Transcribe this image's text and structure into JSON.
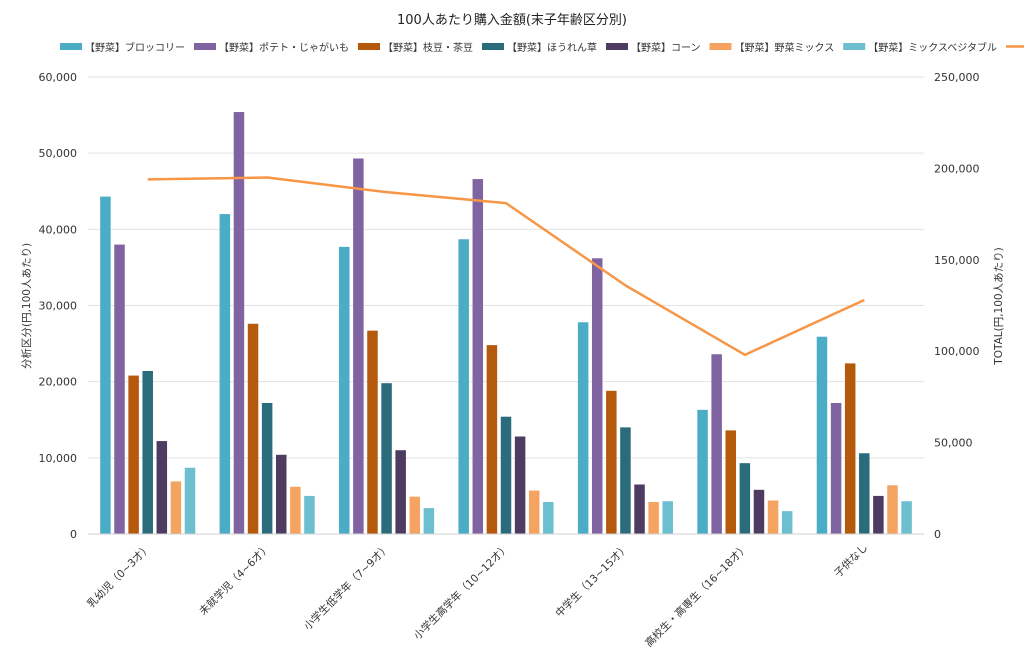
{
  "chart_data": {
    "type": "bar",
    "title": "100人あたり購入金額(末子年齢区分別)",
    "ylabel": "分析区分(円,100人あたり)",
    "y2label": "TOTAL(円,100人あたり)",
    "ylim": [
      0,
      60000
    ],
    "y2lim": [
      0,
      250000
    ],
    "yticks": [
      "0",
      "10,000",
      "20,000",
      "30,000",
      "40,000",
      "50,000",
      "60,000"
    ],
    "y2ticks": [
      "0",
      "50,000",
      "100,000",
      "150,000",
      "200,000",
      "250,000"
    ],
    "legend_position": "top",
    "grid": true,
    "categories": [
      "乳幼児（0~3才）",
      "未就学児（4~6才）",
      "小学生低学年（7~9才）",
      "小学生高学年（10~12才）",
      "中学生（13~15才）",
      "高校生・高専生（16~18才）",
      "子供なし"
    ],
    "series": [
      {
        "name": "【野菜】ブロッコリー",
        "color": "#4bacc6",
        "values": [
          44300,
          42000,
          37700,
          38700,
          27800,
          16300,
          25900
        ]
      },
      {
        "name": "【野菜】ポテト・じゃがいも",
        "color": "#8064a2",
        "values": [
          38000,
          55400,
          49300,
          46600,
          36200,
          23600,
          17200
        ]
      },
      {
        "name": "【野菜】枝豆・茶豆",
        "color": "#b55a0c",
        "values": [
          20800,
          27600,
          26700,
          24800,
          18800,
          13600,
          22400
        ]
      },
      {
        "name": "【野菜】ほうれん草",
        "color": "#2a6b7c",
        "values": [
          21400,
          17200,
          19800,
          15400,
          14000,
          9300,
          10600
        ]
      },
      {
        "name": "【野菜】コーン",
        "color": "#4e3b62",
        "values": [
          12200,
          10400,
          11000,
          12800,
          6500,
          5800,
          5000
        ]
      },
      {
        "name": "【野菜】野菜ミックス",
        "color": "#f4a460",
        "values": [
          6900,
          6200,
          4900,
          5700,
          4200,
          4400,
          6400
        ]
      },
      {
        "name": "【野菜】ミックスベジタブル",
        "color": "#6dbfcf",
        "values": [
          8700,
          5000,
          3400,
          4200,
          4300,
          3000,
          4300
        ]
      }
    ],
    "line": {
      "name": "TOTAL",
      "color": "#f79646",
      "axis": "right",
      "values": [
        194000,
        195000,
        187000,
        181000,
        136000,
        98000,
        128000
      ]
    }
  }
}
